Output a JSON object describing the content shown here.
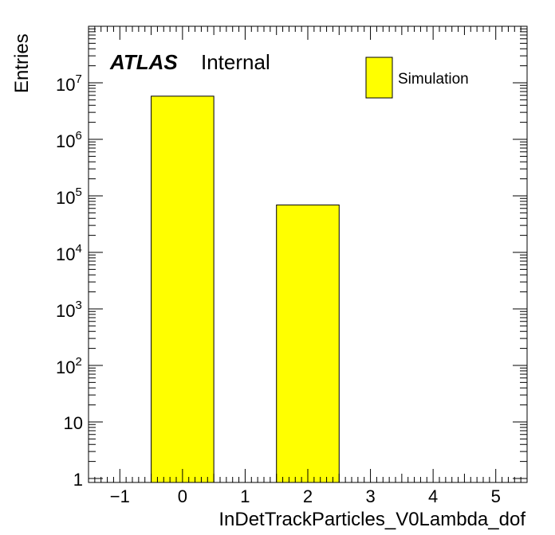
{
  "chart_data": {
    "type": "bar",
    "xlabel": "InDetTrackParticles_V0Lambda_dof",
    "ylabel": "Entries",
    "xlim": [
      -1.5,
      5.5
    ],
    "ylim": [
      0.85,
      100000000
    ],
    "yscale": "log",
    "bar_width": 1,
    "categories": [
      "0",
      "2"
    ],
    "x": [
      0,
      2
    ],
    "series": [
      {
        "name": "Simulation",
        "values": [
          5800000,
          69000
        ]
      }
    ],
    "x_ticks": [
      {
        "value": -1,
        "label": "−1"
      },
      {
        "value": 0,
        "label": "0"
      },
      {
        "value": 1,
        "label": "1"
      },
      {
        "value": 2,
        "label": "2"
      },
      {
        "value": 3,
        "label": "3"
      },
      {
        "value": 4,
        "label": "4"
      },
      {
        "value": 5,
        "label": "5"
      }
    ],
    "y_ticks": [
      {
        "value": 1,
        "base": "1",
        "exp": ""
      },
      {
        "value": 10,
        "base": "10",
        "exp": ""
      },
      {
        "value": 100,
        "base": "10",
        "exp": "2"
      },
      {
        "value": 1000,
        "base": "10",
        "exp": "3"
      },
      {
        "value": 10000,
        "base": "10",
        "exp": "4"
      },
      {
        "value": 100000,
        "base": "10",
        "exp": "5"
      },
      {
        "value": 1000000,
        "base": "10",
        "exp": "6"
      },
      {
        "value": 10000000,
        "base": "10",
        "exp": "7"
      }
    ],
    "label_atlas": "ATLAS",
    "label_status": "Internal",
    "legend_position": "top-right",
    "colors": {
      "fill": "#ffff00",
      "stroke": "#000000"
    },
    "grid": false
  }
}
